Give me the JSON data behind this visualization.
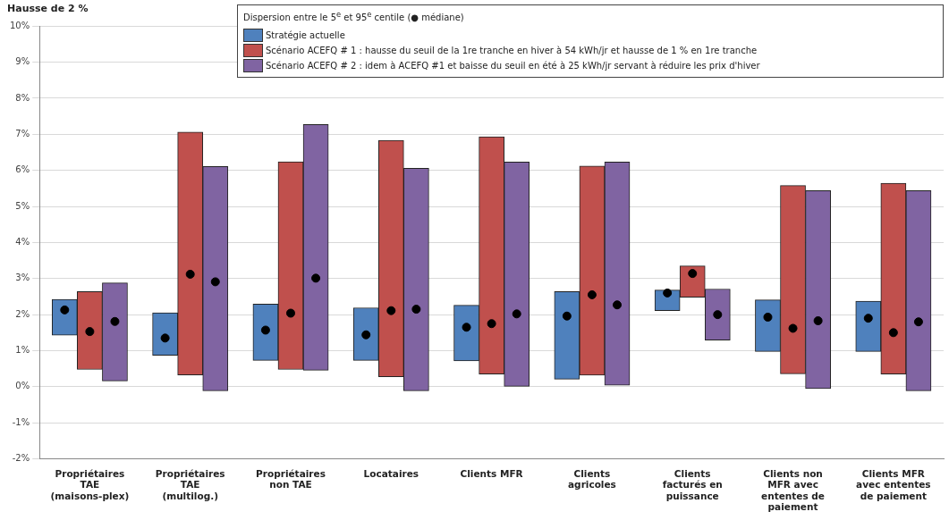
{
  "chart_data": {
    "type": "bar",
    "title": "Hausse de 2 %",
    "legend_title": "Dispersion entre le 5$^{e}$ et 95$^{e}$ centile (● médiane)",
    "categories": [
      "Propriétaires TAE (maisons-plex)",
      "Propriétaires TAE (multilog.)",
      "Propriétaires non TAE",
      "Locataires",
      "Clients MFR",
      "Clients agricoles",
      "Clients facturés en puissance",
      "Clients non MFR avec ententes de paiement",
      "Clients MFR avec ententes de paiement"
    ],
    "series": [
      {
        "name": "Stratégie actuelle",
        "color": "#4f81bd",
        "base": [
          1.43,
          0.87,
          0.73,
          0.73,
          0.72,
          0.21,
          2.11,
          0.98,
          0.98
        ],
        "values": [
          0.99,
          1.18,
          1.56,
          1.46,
          1.54,
          2.43,
          0.57,
          1.43,
          1.39
        ]
      },
      {
        "name": "Scénario ACEFQ # 1 : hausse du seuil de la 1re tranche en hiver à 54 kWh/jr et hausse de 1 % en 1re tranche",
        "color": "#c0504d",
        "base": [
          0.48,
          0.33,
          0.48,
          0.28,
          0.35,
          0.32,
          2.48,
          0.36,
          0.35
        ],
        "values": [
          2.16,
          6.73,
          5.76,
          6.55,
          6.58,
          5.8,
          0.87,
          5.22,
          5.29
        ]
      },
      {
        "name": "Scénario ACEFQ # 2 : idem à ACEFQ #1 et baisse du seuil en été à 25 kWh/jr servant à réduire les prix d'hiver",
        "color": "#8064a2",
        "base": [
          0.16,
          -0.11,
          0.46,
          -0.11,
          0,
          0.04,
          1.29,
          -0.05,
          -0.11
        ],
        "values": [
          2.72,
          6.22,
          6.81,
          6.17,
          6.23,
          6.19,
          1.42,
          5.49,
          5.55
        ]
      },
      {
        "type": "scatter",
        "color": "#000000",
        "x": [
          "Propriétaires TAE (maisons-plex)",
          "Propriétaires TAE (multilog.)",
          "Propriétaires non TAE",
          "Locataires",
          "Clients MFR",
          "Clients agricoles",
          "Clients facturés en puissance",
          "Clients non MFR avec ententes de paiement",
          "Clients MFR avec ententes de paiement"
        ],
        "values": [
          2.13,
          1.35,
          1.57,
          1.44,
          1.65,
          1.96,
          2.6,
          1.93,
          1.9
        ]
      },
      {
        "type": "scatter",
        "color": "#000000",
        "x": [
          "Propriétaires TAE (maisons-plex)",
          "Propriétaires TAE (multilog.)",
          "Propriétaires non TAE",
          "Locataires",
          "Clients MFR",
          "Clients agricoles",
          "Clients facturés en puissance",
          "Clients non MFR avec ententes de paiement",
          "Clients MFR avec ententes de paiement"
        ],
        "values": [
          1.53,
          3.12,
          2.04,
          2.11,
          1.75,
          2.55,
          3.14,
          1.62,
          1.5
        ]
      },
      {
        "type": "scatter",
        "color": "#000000",
        "x": [
          "Propriétaires TAE (maisons-plex)",
          "Propriétaires TAE (multilog.)",
          "Propriétaires non TAE",
          "Locataires",
          "Clients MFR",
          "Clients agricoles",
          "Clients facturés en puissance",
          "Clients non MFR avec ententes de paiement",
          "Clients MFR avec ententes de paiement"
        ],
        "values": [
          1.81,
          2.91,
          3.01,
          2.15,
          2.02,
          2.27,
          2.0,
          1.83,
          1.8
        ]
      }
    ],
    "ylim": [
      -2,
      10
    ],
    "yticks": [
      {
        "value": -2,
        "label": "-2%"
      },
      {
        "value": -1,
        "label": "-1%"
      },
      {
        "value": 0,
        "label": "0%"
      },
      {
        "value": 1,
        "label": "1%"
      },
      {
        "value": 2,
        "label": "2%"
      },
      {
        "value": 3,
        "label": "3%"
      },
      {
        "value": 4,
        "label": "4%"
      },
      {
        "value": 5,
        "label": "5%"
      },
      {
        "value": 6,
        "label": "6%"
      },
      {
        "value": 7,
        "label": "7%"
      },
      {
        "value": 8,
        "label": "8%"
      },
      {
        "value": 9,
        "label": "9%"
      },
      {
        "value": 10,
        "label": "10%"
      }
    ],
    "grid": "y",
    "legend": "top right",
    "marker": "circle"
  }
}
